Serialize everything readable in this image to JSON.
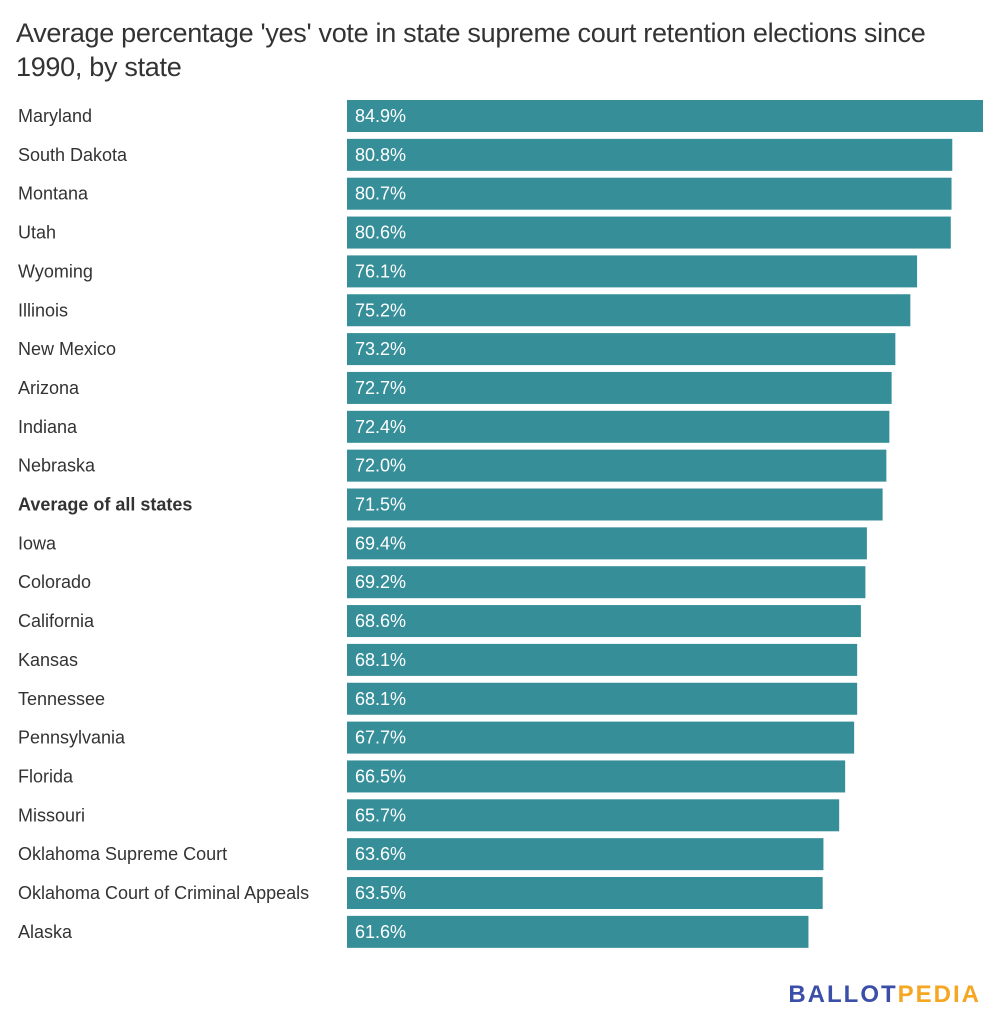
{
  "chart_data": {
    "type": "bar",
    "orientation": "horizontal",
    "title": "Average percentage 'yes' vote in state supreme court retention elections since 1990, by state",
    "xlabel": "",
    "ylabel": "",
    "value_suffix": "%",
    "xlim": [
      0,
      84.9
    ],
    "grid": false,
    "bar_color": "#368e98",
    "categories": [
      "Maryland",
      "South Dakota",
      "Montana",
      "Utah",
      "Wyoming",
      "Illinois",
      "New Mexico",
      "Arizona",
      "Indiana",
      "Nebraska",
      "Average of all states",
      "Iowa",
      "Colorado",
      "California",
      "Kansas",
      "Tennessee",
      "Pennsylvania",
      "Florida",
      "Missouri",
      "Oklahoma Supreme Court",
      "Oklahoma Court of Criminal Appeals",
      "Alaska"
    ],
    "values": [
      84.9,
      80.8,
      80.7,
      80.6,
      76.1,
      75.2,
      73.2,
      72.7,
      72.4,
      72.0,
      71.5,
      69.4,
      69.2,
      68.6,
      68.1,
      68.1,
      67.7,
      66.5,
      65.7,
      63.6,
      63.5,
      61.6
    ],
    "labels": [
      "84.9%",
      "80.8%",
      "80.7%",
      "80.6%",
      "76.1%",
      "75.2%",
      "73.2%",
      "72.7%",
      "72.4%",
      "72.0%",
      "71.5%",
      "69.4%",
      "69.2%",
      "68.6%",
      "68.1%",
      "68.1%",
      "67.7%",
      "66.5%",
      "65.7%",
      "63.6%",
      "63.5%",
      "61.6%"
    ],
    "highlighted_category": "Average of all states"
  },
  "branding": {
    "logo_part1": "BALLOT",
    "logo_part2": "PEDIA",
    "logo_color1": "#3b4fa8",
    "logo_color2": "#f5a623"
  }
}
